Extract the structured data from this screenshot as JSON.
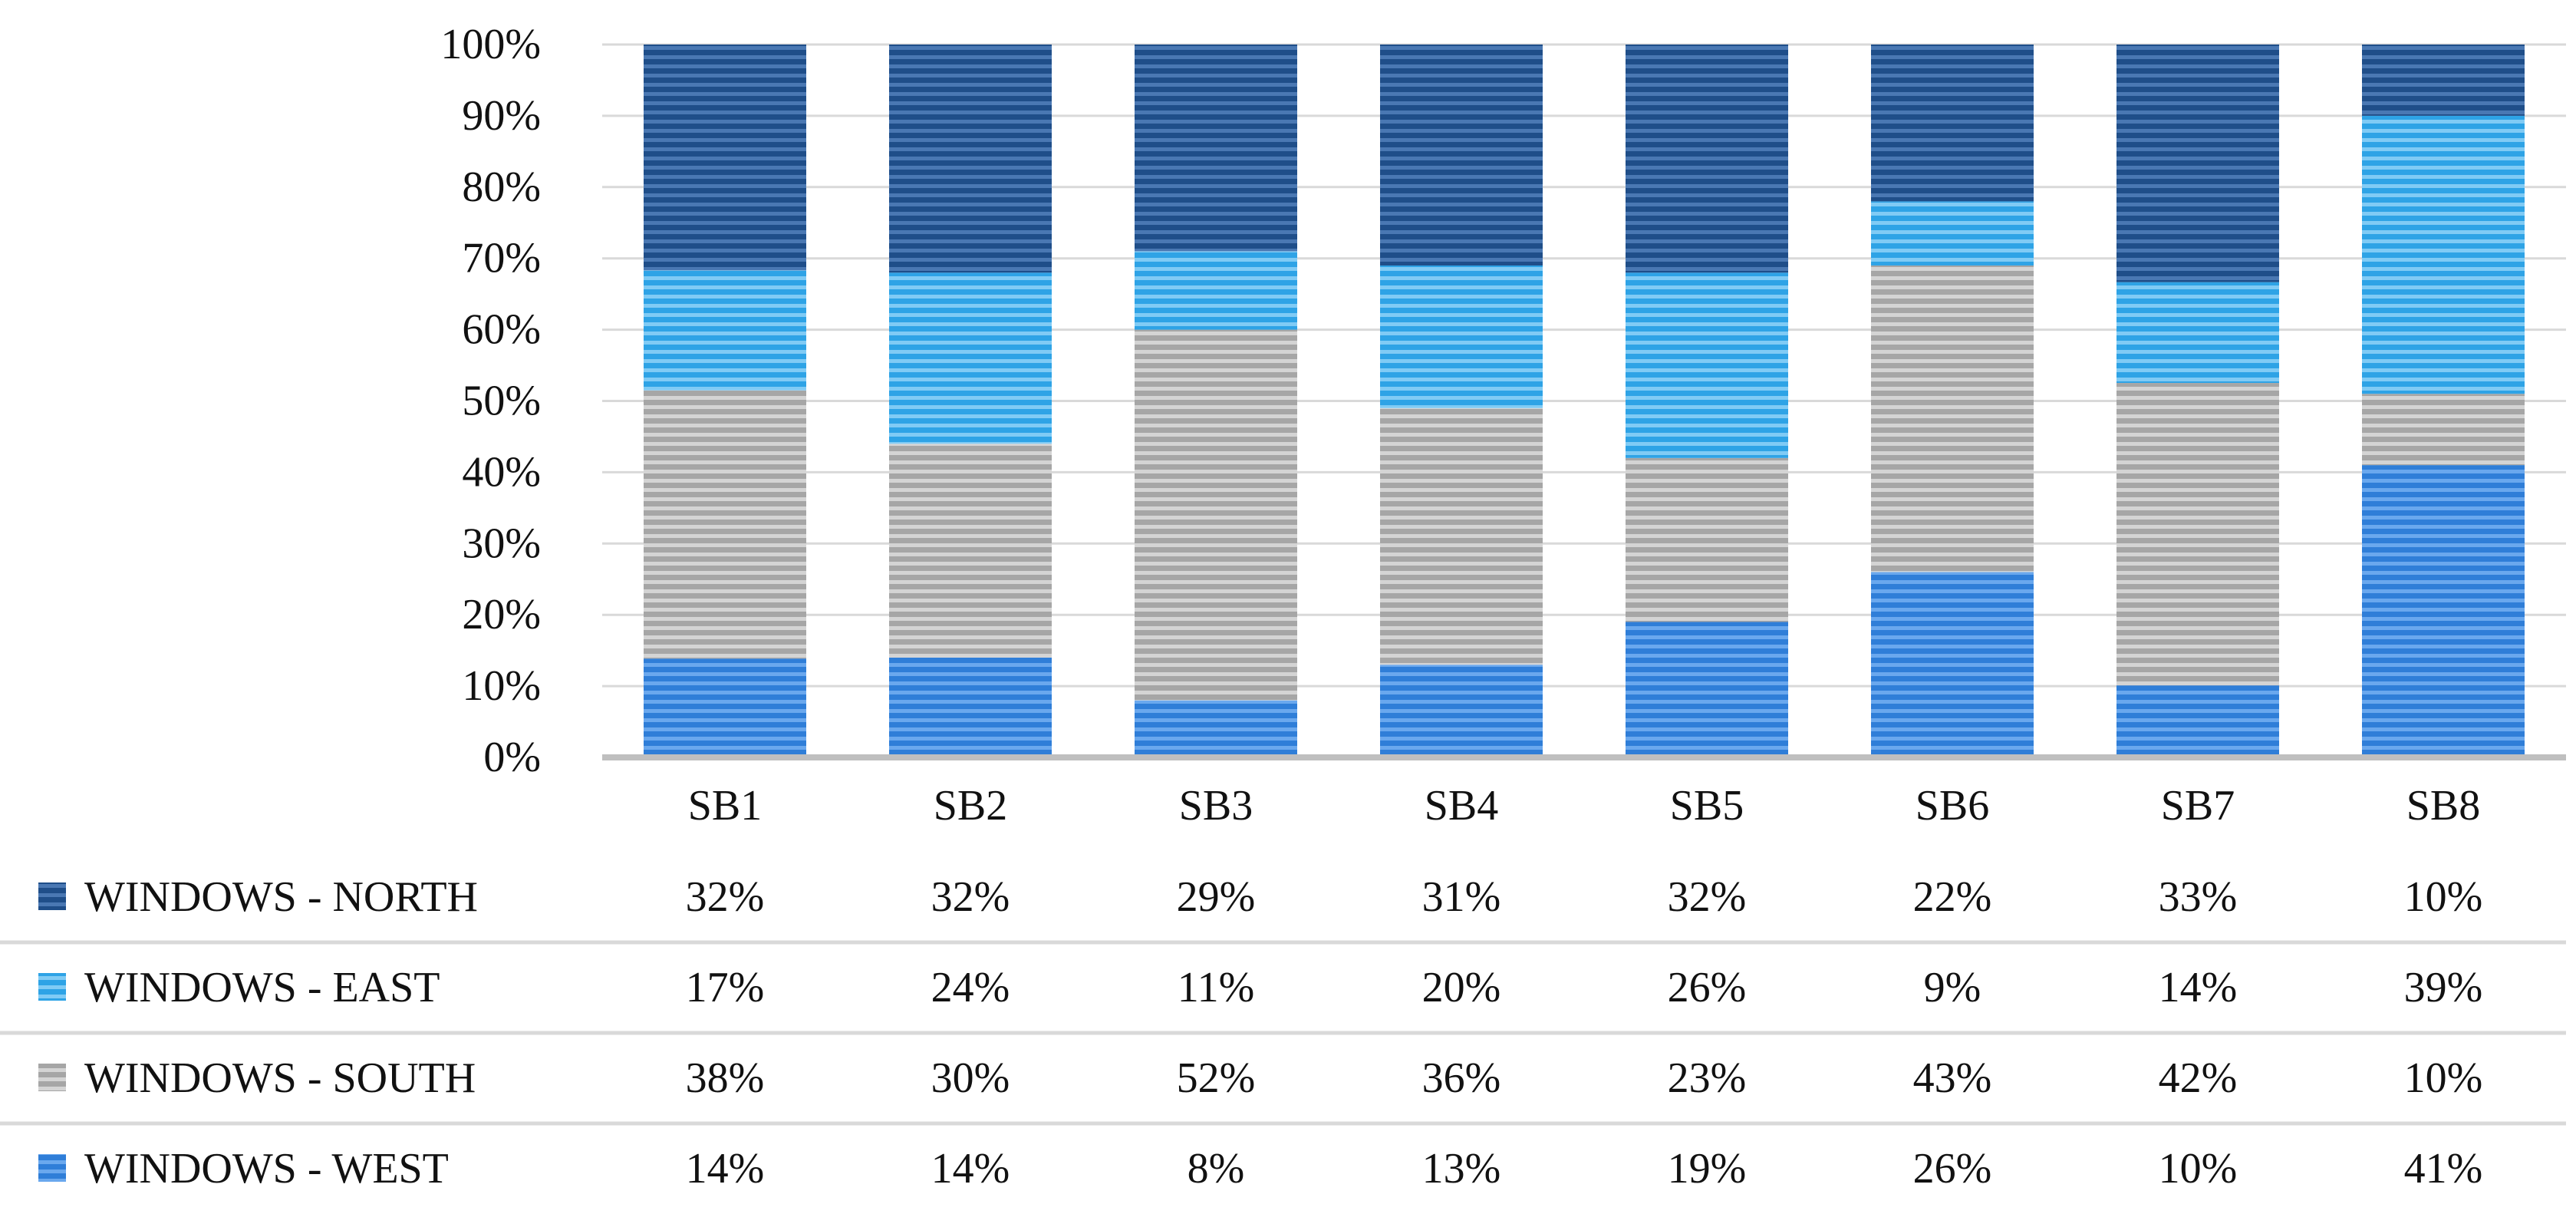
{
  "chart_data": {
    "type": "bar",
    "stacked": true,
    "percent": true,
    "categories": [
      "SB1",
      "SB2",
      "SB3",
      "SB4",
      "SB5",
      "SB6",
      "SB7",
      "SB8"
    ],
    "series": [
      {
        "name": "WINDOWS - WEST",
        "values": [
          14,
          14,
          8,
          13,
          19,
          26,
          10,
          41
        ],
        "color": "#2f7ed8",
        "stripe": "#6aa8ee"
      },
      {
        "name": "WINDOWS - SOUTH",
        "values": [
          38,
          30,
          52,
          36,
          23,
          43,
          42,
          10
        ],
        "color": "#a6a6a6",
        "stripe": "#d4d4d4"
      },
      {
        "name": "WINDOWS - EAST",
        "values": [
          17,
          24,
          11,
          20,
          26,
          9,
          14,
          39
        ],
        "color": "#2ea3e6",
        "stripe": "#80cbf5"
      },
      {
        "name": "WINDOWS - NORTH",
        "values": [
          32,
          32,
          29,
          31,
          32,
          22,
          33,
          10
        ],
        "color": "#1f4e89",
        "stripe": "#4a78b3"
      }
    ],
    "table_order": [
      "WINDOWS - NORTH",
      "WINDOWS - EAST",
      "WINDOWS - SOUTH",
      "WINDOWS - WEST"
    ],
    "table_values": {
      "WINDOWS - NORTH": [
        "32%",
        "32%",
        "29%",
        "31%",
        "32%",
        "22%",
        "33%",
        "10%"
      ],
      "WINDOWS - EAST": [
        "17%",
        "24%",
        "11%",
        "20%",
        "26%",
        "9%",
        "14%",
        "39%"
      ],
      "WINDOWS - SOUTH": [
        "38%",
        "30%",
        "52%",
        "36%",
        "23%",
        "43%",
        "42%",
        "10%"
      ],
      "WINDOWS - WEST": [
        "14%",
        "14%",
        "8%",
        "13%",
        "19%",
        "26%",
        "10%",
        "41%"
      ]
    },
    "y_ticks": [
      "0%",
      "10%",
      "20%",
      "30%",
      "40%",
      "50%",
      "60%",
      "70%",
      "80%",
      "90%",
      "100%"
    ],
    "ylim": [
      0,
      100
    ],
    "grid": true,
    "legend": "data-table-below",
    "title": "",
    "xlabel": "",
    "ylabel": ""
  }
}
